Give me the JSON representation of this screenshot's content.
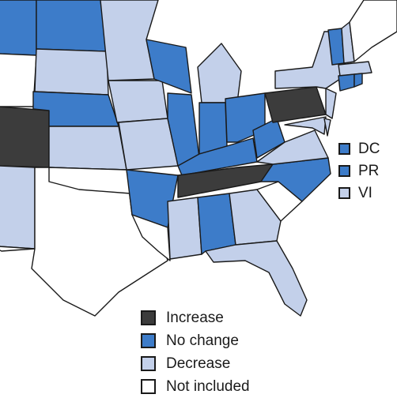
{
  "colors": {
    "increase": "#3c3c3c",
    "no_change": "#3d7cc9",
    "decrease": "#c3d0ea",
    "not_included": "#ffffff",
    "border": "#1a1a1a"
  },
  "legend": [
    {
      "label": "Increase",
      "category": "increase"
    },
    {
      "label": "No change",
      "category": "no_change"
    },
    {
      "label": "Decrease",
      "category": "decrease"
    },
    {
      "label": "Not included",
      "category": "not_included"
    }
  ],
  "territories": [
    {
      "label": "DC",
      "category": "no_change"
    },
    {
      "label": "PR",
      "category": "no_change"
    },
    {
      "label": "VI",
      "category": "decrease"
    }
  ]
}
